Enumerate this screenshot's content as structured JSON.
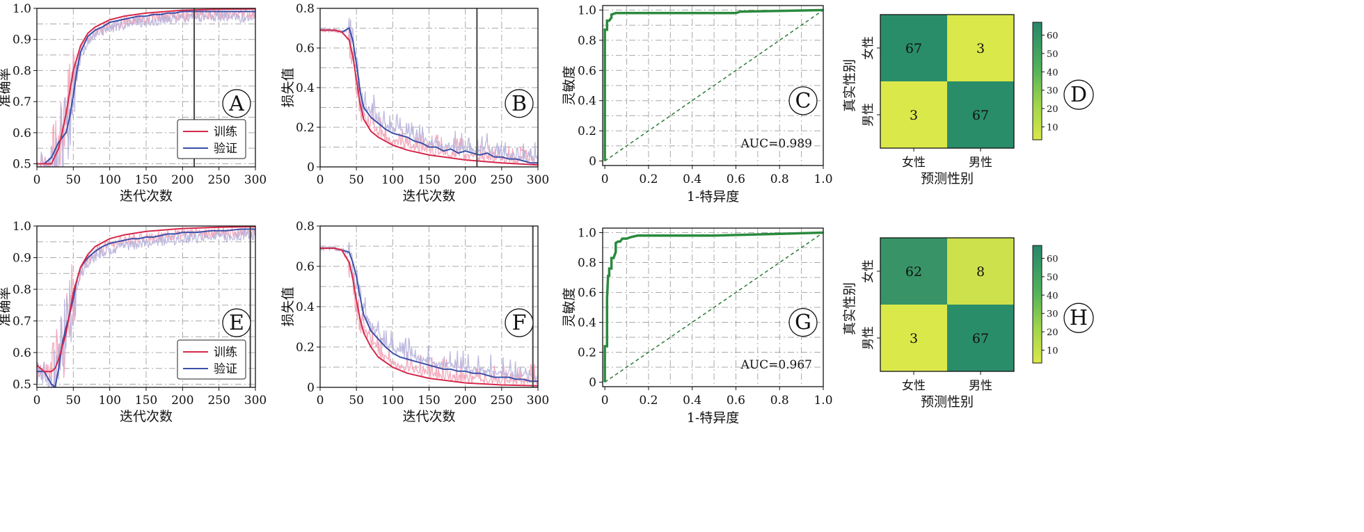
{
  "figure": {
    "rows": [
      {
        "accuracy": {
          "letter": "A",
          "xlabel": "迭代次数",
          "ylabel": "准确率",
          "xticks": [
            0,
            50,
            100,
            150,
            200,
            250,
            300
          ],
          "yticks": [
            0.5,
            0.6,
            0.7,
            0.8,
            0.9,
            1.0
          ],
          "legend": [
            "训练",
            "验证"
          ]
        },
        "loss": {
          "letter": "B",
          "xlabel": "迭代次数",
          "ylabel": "损失值",
          "xticks": [
            0,
            50,
            100,
            150,
            200,
            250,
            300
          ],
          "yticks": [
            0,
            0.2,
            0.4,
            0.6,
            0.8
          ]
        },
        "roc": {
          "letter": "C",
          "xlabel": "1-特异度",
          "ylabel": "灵敏度",
          "xticks": [
            0,
            0.2,
            0.4,
            0.6,
            0.8,
            1.0
          ],
          "yticks": [
            0,
            0.2,
            0.4,
            0.6,
            0.8,
            1.0
          ],
          "auc_label": "AUC=0.989"
        },
        "confusion": {
          "letter": "D",
          "xlabel": "预测性别",
          "ylabel": "真实性别",
          "classes": [
            "女性",
            "男性"
          ],
          "colorbar_ticks": [
            10,
            20,
            30,
            40,
            50,
            60
          ]
        }
      },
      {
        "accuracy": {
          "letter": "E",
          "xlabel": "迭代次数",
          "ylabel": "准确率",
          "xticks": [
            0,
            50,
            100,
            150,
            200,
            250,
            300
          ],
          "yticks": [
            0.5,
            0.6,
            0.7,
            0.8,
            0.9,
            1.0
          ],
          "legend": [
            "训练",
            "验证"
          ]
        },
        "loss": {
          "letter": "F",
          "xlabel": "迭代次数",
          "ylabel": "损失值",
          "xticks": [
            0,
            50,
            100,
            150,
            200,
            250,
            300
          ],
          "yticks": [
            0,
            0.2,
            0.4,
            0.6,
            0.8
          ]
        },
        "roc": {
          "letter": "G",
          "xlabel": "1-特异度",
          "ylabel": "灵敏度",
          "xticks": [
            0,
            0.2,
            0.4,
            0.6,
            0.8,
            1.0
          ],
          "yticks": [
            0,
            0.2,
            0.4,
            0.6,
            0.8,
            1.0
          ],
          "auc_label": "AUC=0.967"
        },
        "confusion": {
          "letter": "H",
          "xlabel": "预测性别",
          "ylabel": "真实性别",
          "classes": [
            "女性",
            "男性"
          ],
          "colorbar_ticks": [
            10,
            20,
            30,
            40,
            50,
            60
          ]
        }
      }
    ]
  },
  "colors": {
    "train": "#d6284a",
    "train_light": "#f2a2b6",
    "val": "#3a4fa8",
    "val_light": "#b7b3dc",
    "roc": "#2a8a3e",
    "diag": "#2a7a36",
    "cm_high": "#2a8d69",
    "cm_low": "#dbe84a"
  },
  "chart_data": [
    {
      "type": "line",
      "panel": "A",
      "xlim": [
        0,
        300
      ],
      "ylim": [
        0.49,
        1.0
      ],
      "marker_line_x": 216,
      "series": [
        {
          "name": "训练",
          "x": [
            0,
            20,
            30,
            40,
            50,
            60,
            70,
            80,
            100,
            120,
            150,
            200,
            250,
            300
          ],
          "values": [
            0.5,
            0.5,
            0.55,
            0.66,
            0.8,
            0.88,
            0.92,
            0.94,
            0.963,
            0.975,
            0.985,
            0.994,
            0.997,
            0.998
          ]
        },
        {
          "name": "验证",
          "x": [
            0,
            10,
            20,
            30,
            40,
            45,
            50,
            55,
            60,
            70,
            80,
            90,
            100,
            110,
            120,
            130,
            140,
            150,
            160,
            170,
            180,
            190,
            200,
            220,
            240,
            260,
            280,
            300
          ],
          "values": [
            0.5,
            0.5,
            0.52,
            0.57,
            0.6,
            0.65,
            0.72,
            0.8,
            0.86,
            0.91,
            0.93,
            0.94,
            0.955,
            0.96,
            0.965,
            0.97,
            0.975,
            0.975,
            0.98,
            0.98,
            0.985,
            0.985,
            0.99,
            0.99,
            0.99,
            0.99,
            0.99,
            0.99
          ]
        }
      ]
    },
    {
      "type": "line",
      "panel": "B",
      "xlim": [
        0,
        300
      ],
      "ylim": [
        0,
        0.8
      ],
      "marker_line_x": 216,
      "series": [
        {
          "name": "训练",
          "x": [
            0,
            20,
            30,
            40,
            45,
            50,
            55,
            60,
            70,
            80,
            100,
            120,
            150,
            200,
            250,
            300
          ],
          "values": [
            0.69,
            0.69,
            0.68,
            0.64,
            0.56,
            0.44,
            0.32,
            0.24,
            0.18,
            0.15,
            0.11,
            0.085,
            0.06,
            0.035,
            0.02,
            0.01
          ]
        },
        {
          "name": "验证",
          "x": [
            0,
            20,
            30,
            40,
            45,
            50,
            55,
            60,
            70,
            80,
            90,
            100,
            110,
            120,
            130,
            140,
            150,
            160,
            170,
            180,
            190,
            200,
            210,
            220,
            230,
            240,
            250,
            260,
            270,
            280,
            290,
            300
          ],
          "values": [
            0.69,
            0.69,
            0.68,
            0.7,
            0.64,
            0.52,
            0.38,
            0.3,
            0.25,
            0.22,
            0.19,
            0.17,
            0.16,
            0.15,
            0.13,
            0.12,
            0.1,
            0.1,
            0.08,
            0.09,
            0.07,
            0.08,
            0.07,
            0.06,
            0.07,
            0.05,
            0.05,
            0.04,
            0.04,
            0.03,
            0.02,
            0.02
          ]
        }
      ]
    },
    {
      "type": "line",
      "panel": "C",
      "xlim": [
        0,
        1
      ],
      "ylim": [
        0,
        1
      ],
      "auc": 0.989,
      "series": [
        {
          "name": "ROC",
          "x": [
            0,
            0,
            0.01,
            0.01,
            0.02,
            0.03,
            0.03,
            0.05,
            0.3,
            0.6,
            0.62,
            1.0
          ],
          "values": [
            0,
            0.87,
            0.87,
            0.93,
            0.93,
            0.95,
            0.97,
            0.98,
            0.98,
            0.98,
            0.99,
            1.0
          ]
        },
        {
          "name": "diagonal",
          "x": [
            0,
            1
          ],
          "values": [
            0,
            1
          ]
        }
      ]
    },
    {
      "type": "heatmap",
      "panel": "D",
      "rows": [
        "女性",
        "男性"
      ],
      "cols": [
        "女性",
        "男性"
      ],
      "values": [
        [
          67,
          3
        ],
        [
          3,
          67
        ]
      ],
      "vmin": 3,
      "vmax": 67
    },
    {
      "type": "line",
      "panel": "E",
      "xlim": [
        0,
        300
      ],
      "ylim": [
        0.49,
        1.0
      ],
      "marker_line_x": 293,
      "series": [
        {
          "name": "训练",
          "x": [
            0,
            10,
            20,
            25,
            30,
            40,
            50,
            60,
            70,
            80,
            100,
            120,
            150,
            200,
            250,
            300
          ],
          "values": [
            0.56,
            0.54,
            0.54,
            0.55,
            0.58,
            0.66,
            0.79,
            0.87,
            0.91,
            0.935,
            0.96,
            0.972,
            0.983,
            0.992,
            0.996,
            0.998
          ]
        },
        {
          "name": "验证",
          "x": [
            0,
            10,
            20,
            25,
            30,
            35,
            40,
            45,
            50,
            55,
            60,
            70,
            80,
            90,
            100,
            110,
            120,
            130,
            140,
            150,
            160,
            170,
            180,
            190,
            200,
            220,
            240,
            260,
            280,
            300
          ],
          "values": [
            0.54,
            0.54,
            0.5,
            0.49,
            0.55,
            0.63,
            0.68,
            0.72,
            0.77,
            0.83,
            0.87,
            0.9,
            0.92,
            0.935,
            0.945,
            0.95,
            0.955,
            0.96,
            0.96,
            0.965,
            0.965,
            0.97,
            0.975,
            0.975,
            0.98,
            0.98,
            0.985,
            0.985,
            0.99,
            0.99
          ]
        }
      ]
    },
    {
      "type": "line",
      "panel": "F",
      "xlim": [
        0,
        300
      ],
      "ylim": [
        0,
        0.8
      ],
      "marker_line_x": 293,
      "series": [
        {
          "name": "训练",
          "x": [
            0,
            20,
            30,
            40,
            45,
            50,
            55,
            60,
            70,
            80,
            100,
            120,
            150,
            200,
            250,
            300
          ],
          "values": [
            0.69,
            0.69,
            0.68,
            0.62,
            0.54,
            0.43,
            0.34,
            0.27,
            0.2,
            0.15,
            0.1,
            0.07,
            0.045,
            0.022,
            0.012,
            0.008
          ]
        },
        {
          "name": "验证",
          "x": [
            0,
            20,
            30,
            40,
            45,
            50,
            55,
            60,
            70,
            80,
            90,
            100,
            110,
            120,
            130,
            140,
            150,
            160,
            170,
            180,
            190,
            200,
            210,
            220,
            230,
            240,
            250,
            260,
            270,
            280,
            290,
            300
          ],
          "values": [
            0.69,
            0.69,
            0.68,
            0.67,
            0.62,
            0.55,
            0.45,
            0.36,
            0.28,
            0.24,
            0.2,
            0.17,
            0.15,
            0.14,
            0.13,
            0.12,
            0.11,
            0.1,
            0.09,
            0.09,
            0.08,
            0.08,
            0.07,
            0.07,
            0.06,
            0.05,
            0.05,
            0.05,
            0.04,
            0.04,
            0.03,
            0.03
          ]
        }
      ]
    },
    {
      "type": "line",
      "panel": "G",
      "xlim": [
        0,
        1
      ],
      "ylim": [
        0,
        1
      ],
      "auc": 0.967,
      "series": [
        {
          "name": "ROC",
          "x": [
            0,
            0,
            0.01,
            0.01,
            0.015,
            0.02,
            0.02,
            0.03,
            0.03,
            0.04,
            0.05,
            0.05,
            0.06,
            0.07,
            0.08,
            0.1,
            0.12,
            0.15,
            0.3,
            0.5,
            1.0
          ],
          "values": [
            0,
            0.24,
            0.24,
            0.56,
            0.71,
            0.71,
            0.76,
            0.76,
            0.83,
            0.83,
            0.87,
            0.93,
            0.94,
            0.94,
            0.96,
            0.96,
            0.97,
            0.98,
            0.98,
            0.98,
            1.0
          ]
        },
        {
          "name": "diagonal",
          "x": [
            0,
            1
          ],
          "values": [
            0,
            1
          ]
        }
      ]
    },
    {
      "type": "heatmap",
      "panel": "H",
      "rows": [
        "女性",
        "男性"
      ],
      "cols": [
        "女性",
        "男性"
      ],
      "values": [
        [
          62,
          8
        ],
        [
          3,
          67
        ]
      ],
      "vmin": 3,
      "vmax": 67
    }
  ]
}
